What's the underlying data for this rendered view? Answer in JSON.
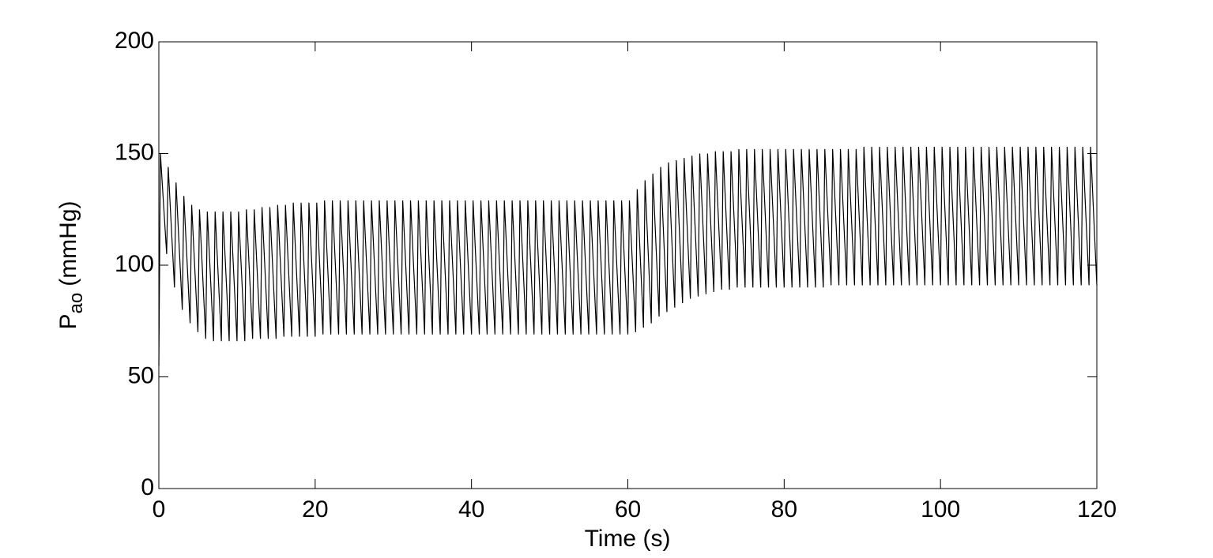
{
  "chart_data": {
    "type": "line",
    "x_label": "Time (s)",
    "y_label": {
      "base": "P",
      "subscript": "ao",
      "unit": "(mmHg)"
    },
    "xlim": [
      0,
      120
    ],
    "xticks": [
      0,
      20,
      40,
      60,
      80,
      100,
      120
    ],
    "ylim": [
      0,
      200
    ],
    "yticks": [
      0,
      50,
      100,
      150,
      200
    ],
    "color": "#000000",
    "x": [
      0,
      0.2,
      1,
      1.2,
      2,
      2.2,
      3,
      3.2,
      4,
      4.2,
      5,
      5.2,
      6,
      6.2,
      7,
      7.2,
      8,
      8.2,
      9,
      9.2,
      10,
      10.2,
      11,
      11.2,
      12,
      12.2,
      13,
      13.2,
      14,
      14.2,
      15,
      15.2,
      16,
      16.2,
      17,
      17.2,
      18,
      18.2,
      19,
      19.2,
      20,
      20.2,
      21,
      21.2,
      22,
      22.2,
      23,
      23.2,
      24,
      24.2,
      25,
      25.2,
      26,
      26.2,
      27,
      27.2,
      28,
      28.2,
      29,
      29.2,
      30,
      30.2,
      31,
      31.2,
      32,
      32.2,
      33,
      33.2,
      34,
      34.2,
      35,
      35.2,
      36,
      36.2,
      37,
      37.2,
      38,
      38.2,
      39,
      39.2,
      40,
      40.2,
      41,
      41.2,
      42,
      42.2,
      43,
      43.2,
      44,
      44.2,
      45,
      45.2,
      46,
      46.2,
      47,
      47.2,
      48,
      48.2,
      49,
      49.2,
      50,
      50.2,
      51,
      51.2,
      52,
      52.2,
      53,
      53.2,
      54,
      54.2,
      55,
      55.2,
      56,
      56.2,
      57,
      57.2,
      58,
      58.2,
      59,
      59.2,
      60,
      60.2,
      61,
      61.2,
      62,
      62.2,
      63,
      63.2,
      64,
      64.2,
      65,
      65.2,
      66,
      66.2,
      67,
      67.2,
      68,
      68.2,
      69,
      69.2,
      70,
      70.2,
      71,
      71.2,
      72,
      72.2,
      73,
      73.2,
      74,
      74.2,
      75,
      75.2,
      76,
      76.2,
      77,
      77.2,
      78,
      78.2,
      79,
      79.2,
      80,
      80.2,
      81,
      81.2,
      82,
      82.2,
      83,
      83.2,
      84,
      84.2,
      85,
      85.2,
      86,
      86.2,
      87,
      87.2,
      88,
      88.2,
      89,
      89.2,
      90,
      90.2,
      91,
      91.2,
      92,
      92.2,
      93,
      93.2,
      94,
      94.2,
      95,
      95.2,
      96,
      96.2,
      97,
      97.2,
      98,
      98.2,
      99,
      99.2,
      100,
      100.2,
      101,
      101.2,
      102,
      102.2,
      103,
      103.2,
      104,
      104.2,
      105,
      105.2,
      106,
      106.2,
      107,
      107.2,
      108,
      108.2,
      109,
      109.2,
      110,
      110.2,
      111,
      111.2,
      112,
      112.2,
      113,
      113.2,
      114,
      114.2,
      115,
      115.2,
      116,
      116.2,
      117,
      117.2,
      118,
      118.2,
      119,
      119.2,
      120
    ],
    "values": [
      55,
      150,
      105,
      144,
      90,
      137,
      80,
      131,
      74,
      127,
      70,
      125,
      67,
      124,
      66,
      124,
      66,
      124,
      66,
      124,
      66,
      124,
      66,
      125,
      67,
      125,
      67,
      126,
      67,
      126,
      67,
      127,
      68,
      127,
      68,
      128,
      68,
      128,
      68,
      128,
      68,
      128,
      69,
      129,
      69,
      129,
      69,
      129,
      69,
      129,
      69,
      129,
      69,
      129,
      69,
      129,
      69,
      129,
      69,
      129,
      69,
      129,
      69,
      129,
      69,
      129,
      69,
      129,
      69,
      129,
      69,
      129,
      69,
      129,
      69,
      129,
      69,
      129,
      69,
      129,
      69,
      129,
      69,
      129,
      69,
      129,
      69,
      129,
      69,
      129,
      69,
      129,
      69,
      129,
      69,
      129,
      69,
      129,
      69,
      129,
      69,
      129,
      69,
      129,
      69,
      129,
      69,
      129,
      69,
      129,
      69,
      129,
      69,
      129,
      69,
      129,
      69,
      129,
      69,
      129,
      69,
      129,
      70,
      134,
      72,
      138,
      74,
      141,
      77,
      144,
      79,
      146,
      81,
      147,
      83,
      148,
      85,
      149,
      86,
      150,
      87,
      150,
      88,
      151,
      89,
      151,
      89,
      151,
      90,
      152,
      90,
      152,
      90,
      152,
      90,
      152,
      90,
      152,
      90,
      152,
      90,
      152,
      90,
      152,
      90,
      152,
      90,
      152,
      90,
      152,
      90,
      152,
      91,
      152,
      91,
      152,
      91,
      152,
      91,
      152,
      91,
      153,
      91,
      153,
      91,
      153,
      91,
      153,
      91,
      153,
      91,
      153,
      91,
      153,
      91,
      153,
      91,
      153,
      91,
      153,
      91,
      153,
      91,
      153,
      91,
      153,
      91,
      153,
      91,
      153,
      91,
      153,
      91,
      153,
      91,
      153,
      91,
      153,
      91,
      153,
      91,
      153,
      91,
      153,
      91,
      153,
      91,
      153,
      91,
      153,
      91,
      153,
      91,
      153,
      91,
      153,
      91,
      153,
      91,
      153,
      91
    ]
  }
}
